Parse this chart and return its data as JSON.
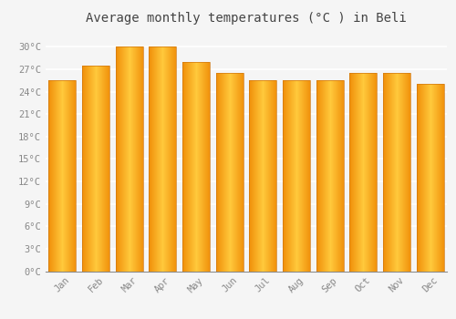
{
  "title": "Average monthly temperatures (°C ) in Beli",
  "months": [
    "Jan",
    "Feb",
    "Mar",
    "Apr",
    "May",
    "Jun",
    "Jul",
    "Aug",
    "Sep",
    "Oct",
    "Nov",
    "Dec"
  ],
  "values": [
    25.5,
    27.5,
    30.0,
    30.0,
    28.0,
    26.5,
    25.5,
    25.5,
    25.5,
    26.5,
    26.5,
    25.0
  ],
  "bar_color_center": "#FFC93C",
  "bar_color_edge": "#F0900A",
  "bar_color_mid": "#FFAA20",
  "yticks": [
    0,
    3,
    6,
    9,
    12,
    15,
    18,
    21,
    24,
    27,
    30
  ],
  "ytick_labels": [
    "0°C",
    "3°C",
    "6°C",
    "9°C",
    "12°C",
    "15°C",
    "18°C",
    "21°C",
    "24°C",
    "27°C",
    "30°C"
  ],
  "ylim": [
    0,
    32
  ],
  "background_color": "#f5f5f5",
  "plot_bg_color": "#f5f5f5",
  "grid_color": "#ffffff",
  "title_fontsize": 10,
  "tick_fontsize": 7.5,
  "tick_color": "#888888",
  "font_family": "monospace",
  "bar_width": 0.82
}
